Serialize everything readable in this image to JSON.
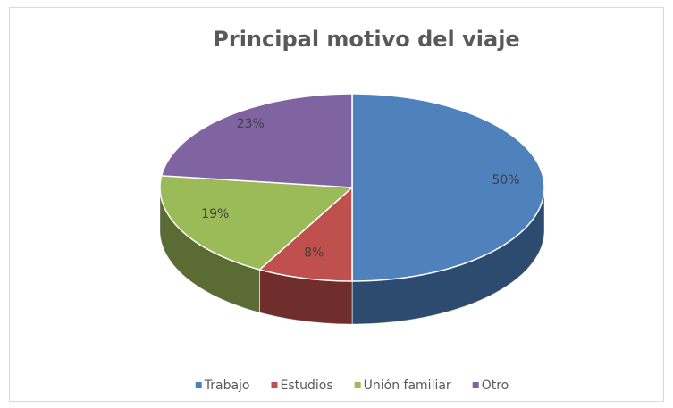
{
  "chart_data": {
    "type": "pie",
    "title": "Principal motivo del viaje",
    "categories": [
      "Trabajo",
      "Estudios",
      "Unión familiar",
      "Otro"
    ],
    "values": [
      50,
      8,
      19,
      23
    ],
    "value_labels": [
      "50%",
      "8%",
      "19%",
      "23%"
    ],
    "colors": [
      "#4f81bd",
      "#c0504d",
      "#9bbb59",
      "#8064a2"
    ],
    "legend": "bottom"
  }
}
